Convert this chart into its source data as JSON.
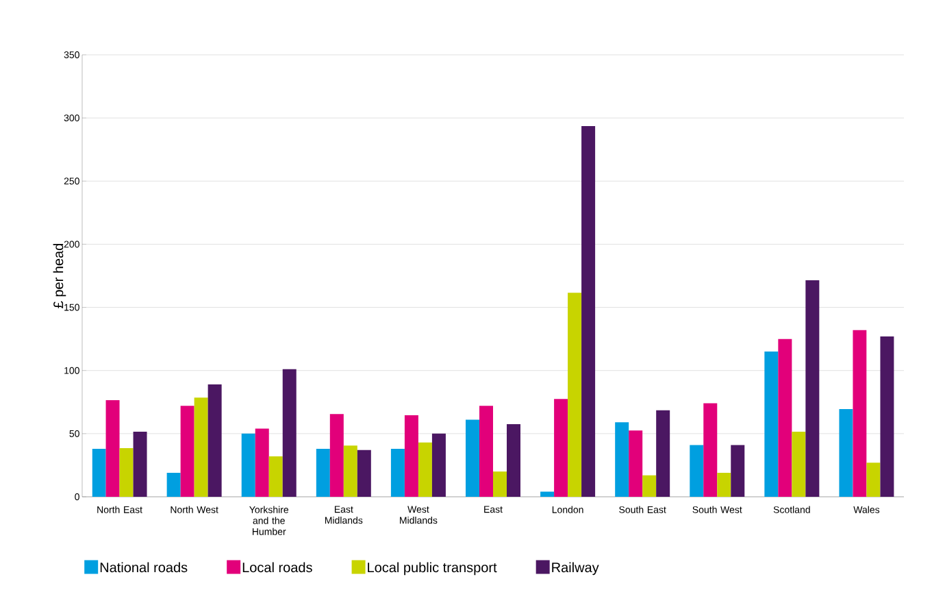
{
  "chart_data": {
    "type": "bar",
    "ylabel": "£ per head",
    "categories": [
      "North East",
      "North West",
      "Yorkshire and the Humber",
      "East Midlands",
      "West Midlands",
      "East",
      "London",
      "South East",
      "South West",
      "Scotland",
      "Wales"
    ],
    "series": [
      {
        "name": "National roads",
        "color": "#009fe0",
        "values": [
          38,
          19,
          50,
          38,
          38,
          61,
          4,
          59,
          41,
          115,
          69.5
        ]
      },
      {
        "name": "Local roads",
        "color": "#e2007a",
        "values": [
          76.5,
          72,
          54,
          65.5,
          64.5,
          72,
          77.5,
          52.5,
          74,
          125,
          132
        ]
      },
      {
        "name": "Local public transport",
        "color": "#c8d400",
        "values": [
          38.5,
          78.5,
          32,
          40.5,
          43,
          20,
          161.5,
          17,
          19,
          51.5,
          27
        ]
      },
      {
        "name": "Railway",
        "color": "#4b1762",
        "values": [
          51.5,
          89,
          101,
          37,
          50,
          57.5,
          293.5,
          68.5,
          41,
          171.5,
          127
        ]
      }
    ],
    "ylim": [
      0,
      350
    ],
    "yticks": [
      0,
      50,
      100,
      150,
      200,
      250,
      300,
      350
    ],
    "grid": "y",
    "legend": "bottom"
  }
}
